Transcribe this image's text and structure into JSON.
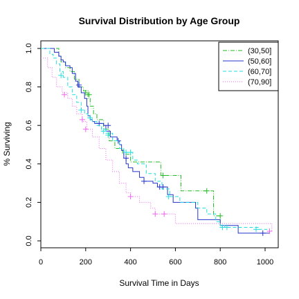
{
  "chart_data": {
    "type": "line",
    "title": "Survival Distribution by Age Group",
    "xlabel": "Survival Time in Days",
    "ylabel": "% Surviving",
    "xlim": [
      0,
      1030
    ],
    "ylim": [
      0,
      1.0
    ],
    "x_ticks": [
      0,
      200,
      400,
      600,
      800,
      1000
    ],
    "y_ticks": [
      0.0,
      0.2,
      0.4,
      0.6,
      0.8,
      1.0
    ],
    "x_tick_labels": [
      "0",
      "200",
      "400",
      "600",
      "800",
      "1000"
    ],
    "y_tick_labels": [
      "0.0",
      "0.2",
      "0.4",
      "0.6",
      "0.8",
      "1.0"
    ],
    "grid": false,
    "legend_position": "top-right",
    "series": [
      {
        "name": "(30,50]",
        "color": "#22bb22",
        "dash": "6,2,1,2",
        "step": [
          [
            0,
            1.0
          ],
          [
            70,
            1.0
          ],
          [
            80,
            0.96
          ],
          [
            90,
            0.93
          ],
          [
            110,
            0.9
          ],
          [
            130,
            0.88
          ],
          [
            150,
            0.84
          ],
          [
            170,
            0.8
          ],
          [
            190,
            0.78
          ],
          [
            210,
            0.74
          ],
          [
            220,
            0.7
          ],
          [
            235,
            0.66
          ],
          [
            250,
            0.63
          ],
          [
            280,
            0.58
          ],
          [
            305,
            0.52
          ],
          [
            330,
            0.48
          ],
          [
            365,
            0.45
          ],
          [
            400,
            0.41
          ],
          [
            440,
            0.41
          ],
          [
            535,
            0.34
          ],
          [
            620,
            0.34
          ],
          [
            625,
            0.26
          ],
          [
            765,
            0.26
          ],
          [
            770,
            0.13
          ],
          [
            800,
            0.13
          ],
          [
            800,
            0.07
          ],
          [
            820,
            0.07
          ]
        ],
        "censors": [
          [
            200,
            0.77
          ],
          [
            215,
            0.76
          ],
          [
            545,
            0.34
          ],
          [
            740,
            0.26
          ],
          [
            800,
            0.13
          ]
        ]
      },
      {
        "name": "(50,60]",
        "color": "#2233cc",
        "dash": "",
        "step": [
          [
            0,
            1.0
          ],
          [
            60,
            1.0
          ],
          [
            60,
            0.98
          ],
          [
            70,
            0.98
          ],
          [
            80,
            0.96
          ],
          [
            90,
            0.94
          ],
          [
            100,
            0.93
          ],
          [
            110,
            0.91
          ],
          [
            130,
            0.9
          ],
          [
            140,
            0.87
          ],
          [
            155,
            0.83
          ],
          [
            165,
            0.8
          ],
          [
            180,
            0.77
          ],
          [
            195,
            0.74
          ],
          [
            205,
            0.7
          ],
          [
            210,
            0.65
          ],
          [
            220,
            0.63
          ],
          [
            230,
            0.62
          ],
          [
            240,
            0.61
          ],
          [
            260,
            0.61
          ],
          [
            280,
            0.6
          ],
          [
            290,
            0.57
          ],
          [
            300,
            0.57
          ],
          [
            310,
            0.54
          ],
          [
            330,
            0.54
          ],
          [
            340,
            0.52
          ],
          [
            350,
            0.5
          ],
          [
            360,
            0.47
          ],
          [
            370,
            0.43
          ],
          [
            380,
            0.4
          ],
          [
            390,
            0.38
          ],
          [
            410,
            0.36
          ],
          [
            440,
            0.33
          ],
          [
            460,
            0.31
          ],
          [
            500,
            0.3
          ],
          [
            520,
            0.28
          ],
          [
            540,
            0.28
          ],
          [
            565,
            0.24
          ],
          [
            590,
            0.2
          ],
          [
            690,
            0.17
          ],
          [
            700,
            0.11
          ],
          [
            790,
            0.11
          ],
          [
            800,
            0.08
          ],
          [
            880,
            0.04
          ],
          [
            1020,
            0.04
          ]
        ],
        "censors": [
          [
            170,
            0.81
          ],
          [
            260,
            0.61
          ],
          [
            300,
            0.6
          ],
          [
            345,
            0.52
          ],
          [
            380,
            0.43
          ],
          [
            460,
            0.31
          ],
          [
            530,
            0.28
          ],
          [
            545,
            0.28
          ],
          [
            990,
            0.04
          ]
        ]
      },
      {
        "name": "(60,70]",
        "color": "#22dddd",
        "dash": "5,3",
        "step": [
          [
            0,
            1.0
          ],
          [
            30,
            1.0
          ],
          [
            40,
            0.97
          ],
          [
            55,
            0.95
          ],
          [
            70,
            0.92
          ],
          [
            85,
            0.88
          ],
          [
            100,
            0.85
          ],
          [
            120,
            0.8
          ],
          [
            140,
            0.76
          ],
          [
            160,
            0.72
          ],
          [
            180,
            0.68
          ],
          [
            195,
            0.66
          ],
          [
            210,
            0.64
          ],
          [
            230,
            0.62
          ],
          [
            250,
            0.6
          ],
          [
            270,
            0.58
          ],
          [
            290,
            0.56
          ],
          [
            320,
            0.52
          ],
          [
            350,
            0.48
          ],
          [
            370,
            0.46
          ],
          [
            400,
            0.46
          ],
          [
            410,
            0.42
          ],
          [
            430,
            0.4
          ],
          [
            470,
            0.35
          ],
          [
            510,
            0.31
          ],
          [
            540,
            0.27
          ],
          [
            575,
            0.23
          ],
          [
            620,
            0.2
          ],
          [
            700,
            0.17
          ],
          [
            740,
            0.14
          ],
          [
            780,
            0.1
          ],
          [
            800,
            0.08
          ],
          [
            820,
            0.07
          ],
          [
            960,
            0.07
          ],
          [
            970,
            0.06
          ],
          [
            1010,
            0.06
          ]
        ],
        "censors": [
          [
            90,
            0.86
          ],
          [
            180,
            0.68
          ],
          [
            220,
            0.64
          ],
          [
            280,
            0.57
          ],
          [
            300,
            0.55
          ],
          [
            380,
            0.46
          ],
          [
            400,
            0.46
          ],
          [
            570,
            0.23
          ],
          [
            810,
            0.07
          ],
          [
            830,
            0.07
          ],
          [
            960,
            0.06
          ]
        ]
      },
      {
        "name": "(70,90]",
        "color": "#ee66ee",
        "dash": "1,2",
        "step": [
          [
            0,
            0.95
          ],
          [
            30,
            0.9
          ],
          [
            50,
            0.85
          ],
          [
            70,
            0.8
          ],
          [
            95,
            0.77
          ],
          [
            120,
            0.74
          ],
          [
            140,
            0.7
          ],
          [
            160,
            0.66
          ],
          [
            185,
            0.62
          ],
          [
            205,
            0.58
          ],
          [
            230,
            0.54
          ],
          [
            260,
            0.48
          ],
          [
            290,
            0.42
          ],
          [
            320,
            0.36
          ],
          [
            350,
            0.3
          ],
          [
            380,
            0.25
          ],
          [
            400,
            0.23
          ],
          [
            440,
            0.2
          ],
          [
            490,
            0.17
          ],
          [
            510,
            0.14
          ],
          [
            560,
            0.14
          ],
          [
            600,
            0.09
          ],
          [
            1030,
            0.05
          ]
        ],
        "censors": [
          [
            105,
            0.76
          ],
          [
            185,
            0.63
          ],
          [
            200,
            0.58
          ],
          [
            400,
            0.23
          ],
          [
            510,
            0.14
          ],
          [
            550,
            0.14
          ],
          [
            1020,
            0.05
          ]
        ]
      }
    ]
  }
}
